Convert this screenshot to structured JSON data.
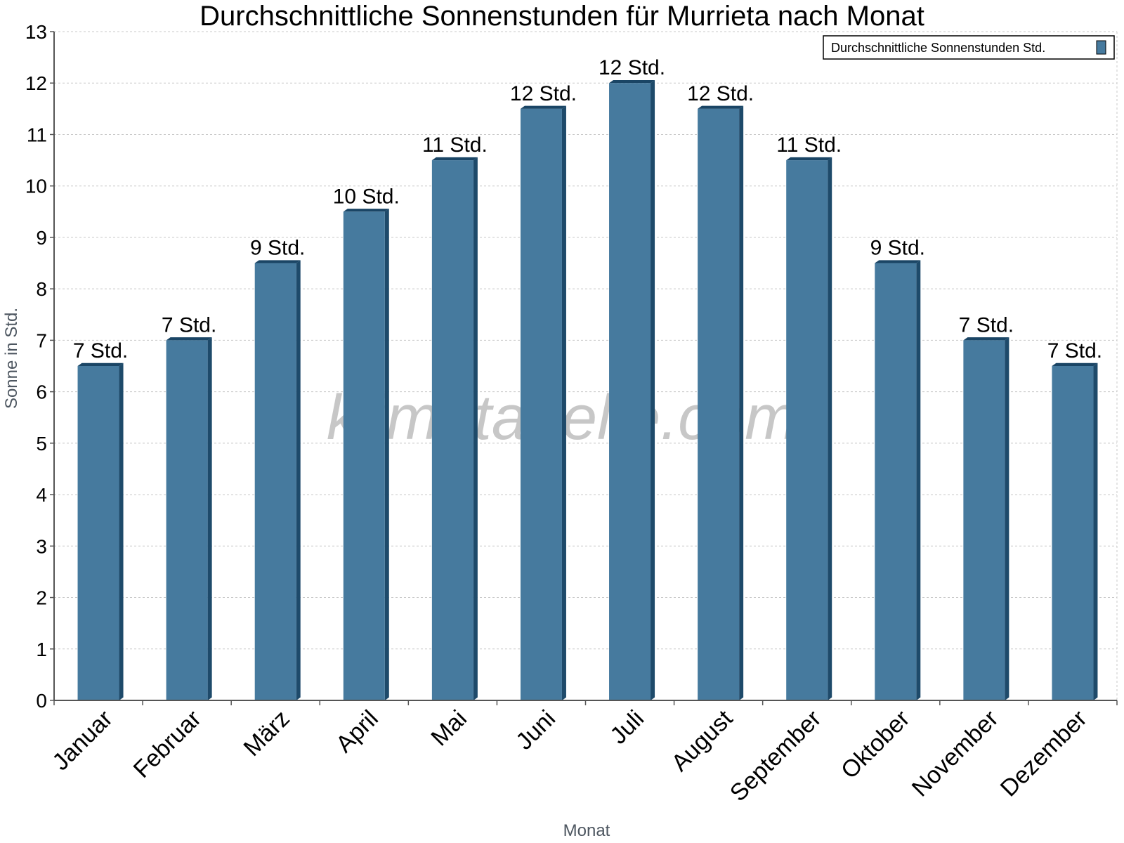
{
  "chart_data": {
    "type": "bar",
    "title": "Durchschnittliche Sonnenstunden für Murrieta nach Monat",
    "xlabel": "Monat",
    "ylabel": "Sonne in Std.",
    "ylim": [
      0,
      13
    ],
    "yticks": [
      "0",
      "1",
      "2",
      "3",
      "4",
      "5",
      "6",
      "7",
      "8",
      "9",
      "10",
      "11",
      "12",
      "13"
    ],
    "grid": true,
    "legend_position": "top-right",
    "categories": [
      "Januar",
      "Februar",
      "März",
      "April",
      "Mai",
      "Juni",
      "Juli",
      "August",
      "September",
      "Oktober",
      "November",
      "Dezember"
    ],
    "series": [
      {
        "name": "Durchschnittliche Sonnenstunden Std.",
        "values": [
          6.5,
          7.0,
          8.5,
          9.5,
          10.5,
          11.5,
          12.0,
          11.5,
          10.5,
          8.5,
          7.0,
          6.5
        ],
        "labels": [
          "7 Std.",
          "7 Std.",
          "9 Std.",
          "10 Std.",
          "11 Std.",
          "12 Std.",
          "12 Std.",
          "12 Std.",
          "11 Std.",
          "9 Std.",
          "7 Std.",
          "7 Std."
        ]
      }
    ]
  },
  "watermark": "klimatabelle.com",
  "colors": {
    "bar_front": "#467a9e",
    "bar_side": "#1e4a6a",
    "bar_top": "#1a4565",
    "axis": "#555555",
    "grid": "#c8c8c8"
  }
}
